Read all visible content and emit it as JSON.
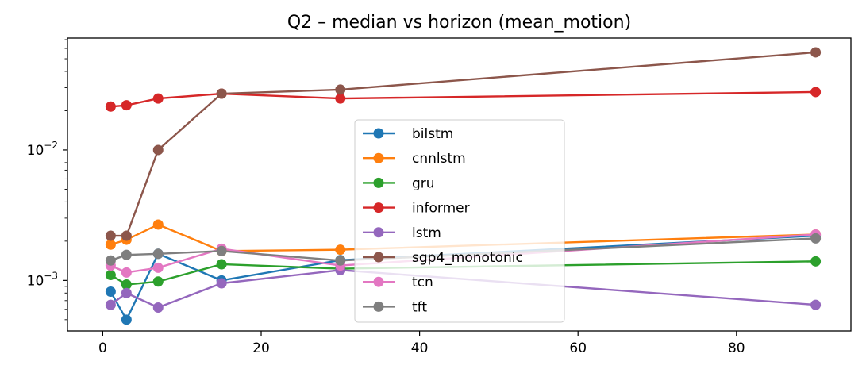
{
  "chart_data": {
    "type": "line",
    "title": "Q2 – median vs horizon (mean_motion)",
    "xlabel": "",
    "ylabel": "",
    "y_scale": "log",
    "xlim": [
      -4.45,
      94.45
    ],
    "ylim": [
      0.00041,
      0.072
    ],
    "x_ticks": [
      0,
      20,
      40,
      60,
      80
    ],
    "y_ticks": [
      {
        "value": 0.01,
        "base": "10",
        "exp": "−2"
      },
      {
        "value": 0.001,
        "base": "10",
        "exp": "−3"
      }
    ],
    "grid": false,
    "legend_position": "center",
    "x": [
      1,
      3,
      7,
      15,
      30,
      90
    ],
    "series": [
      {
        "name": "bilstm",
        "color": "#1f77b4",
        "values": [
          0.00082,
          0.0005,
          0.0016,
          0.001,
          0.00143,
          0.0022
        ]
      },
      {
        "name": "cnnlstm",
        "color": "#ff7f0e",
        "values": [
          0.00188,
          0.00205,
          0.00268,
          0.00168,
          0.00172,
          0.00225
        ]
      },
      {
        "name": "gru",
        "color": "#2ca02c",
        "values": [
          0.0011,
          0.00093,
          0.00098,
          0.00133,
          0.00123,
          0.0014
        ]
      },
      {
        "name": "informer",
        "color": "#d62728",
        "values": [
          0.0215,
          0.022,
          0.0248,
          0.027,
          0.0248,
          0.0278
        ]
      },
      {
        "name": "lstm",
        "color": "#9467bd",
        "values": [
          0.00065,
          0.0008,
          0.00062,
          0.00095,
          0.0012,
          0.00065
        ]
      },
      {
        "name": "sgp4_monotonic",
        "color": "#8c564b",
        "values": [
          0.0022,
          0.0022,
          0.01,
          0.027,
          0.029,
          0.056
        ]
      },
      {
        "name": "tcn",
        "color": "#e377c2",
        "values": [
          0.0013,
          0.00115,
          0.00125,
          0.00175,
          0.0013,
          0.00225
        ]
      },
      {
        "name": "tft",
        "color": "#7f7f7f",
        "values": [
          0.00142,
          0.00157,
          0.0016,
          0.00168,
          0.00142,
          0.0021
        ]
      }
    ]
  }
}
